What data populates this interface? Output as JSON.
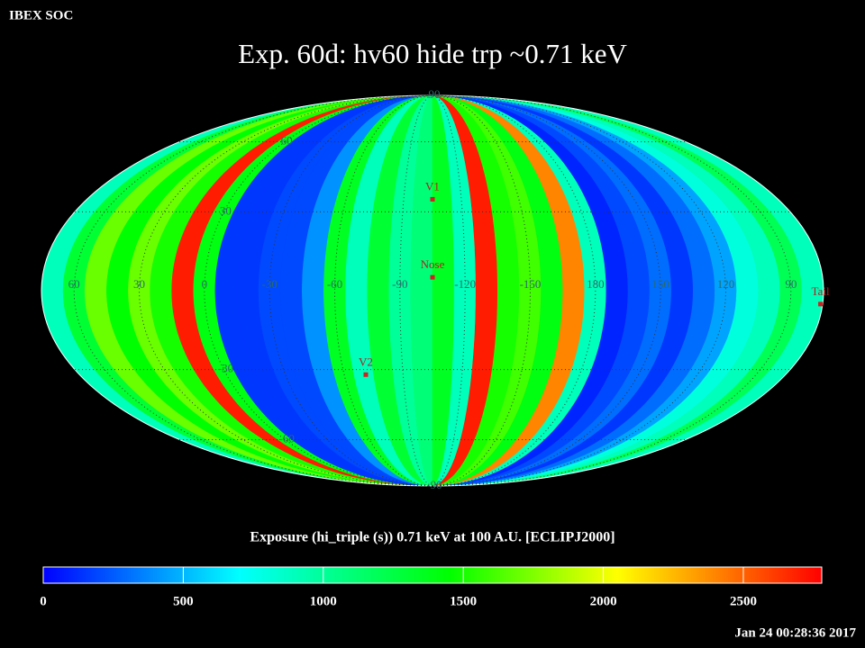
{
  "header": "IBEX SOC",
  "timestamp": "Jan 24 00:28:36 2017",
  "chart_data": {
    "type": "skymap",
    "title": "Exp.   60d: hv60 hide trp ~0.71 keV",
    "projection": "mollweide",
    "center_lon": 255,
    "band_width": 10,
    "values": [
      900,
      1300,
      1700,
      1450,
      1700,
      1500,
      2700,
      1400,
      150,
      150,
      200,
      200,
      400,
      1350,
      900,
      1300,
      1000,
      1100,
      1350,
      900,
      2700,
      1500,
      1600,
      1400,
      2400,
      900,
      100,
      200,
      300,
      150,
      300,
      450,
      800,
      900,
      1200,
      900
    ],
    "lon_ticks": [
      60,
      30,
      0,
      -30,
      -60,
      -90,
      -120,
      -150,
      180,
      150,
      120,
      90
    ],
    "lat_ticks": [
      90,
      60,
      30,
      -30,
      -60,
      -90
    ],
    "markers": [
      {
        "name": "V1",
        "lon": 255,
        "lat": 35
      },
      {
        "name": "Nose",
        "lon": 255,
        "lat": 5
      },
      {
        "name": "V2",
        "lon": 289,
        "lat": -32
      },
      {
        "name": "Tail",
        "lon": 76,
        "lat": -5
      }
    ],
    "colorbar": {
      "label": "Exposure (hi_triple (s))  0.71 keV at 100 A.U. [ECLIPJ2000]",
      "lim": [
        0,
        2780
      ],
      "ticks": [
        0,
        500,
        1000,
        1500,
        2000,
        2500
      ],
      "stops": [
        [
          0,
          "#0000ff"
        ],
        [
          700,
          "#00ffff"
        ],
        [
          1450,
          "#00ff00"
        ],
        [
          2050,
          "#ffff00"
        ],
        [
          2780,
          "#ff0000"
        ]
      ]
    }
  }
}
